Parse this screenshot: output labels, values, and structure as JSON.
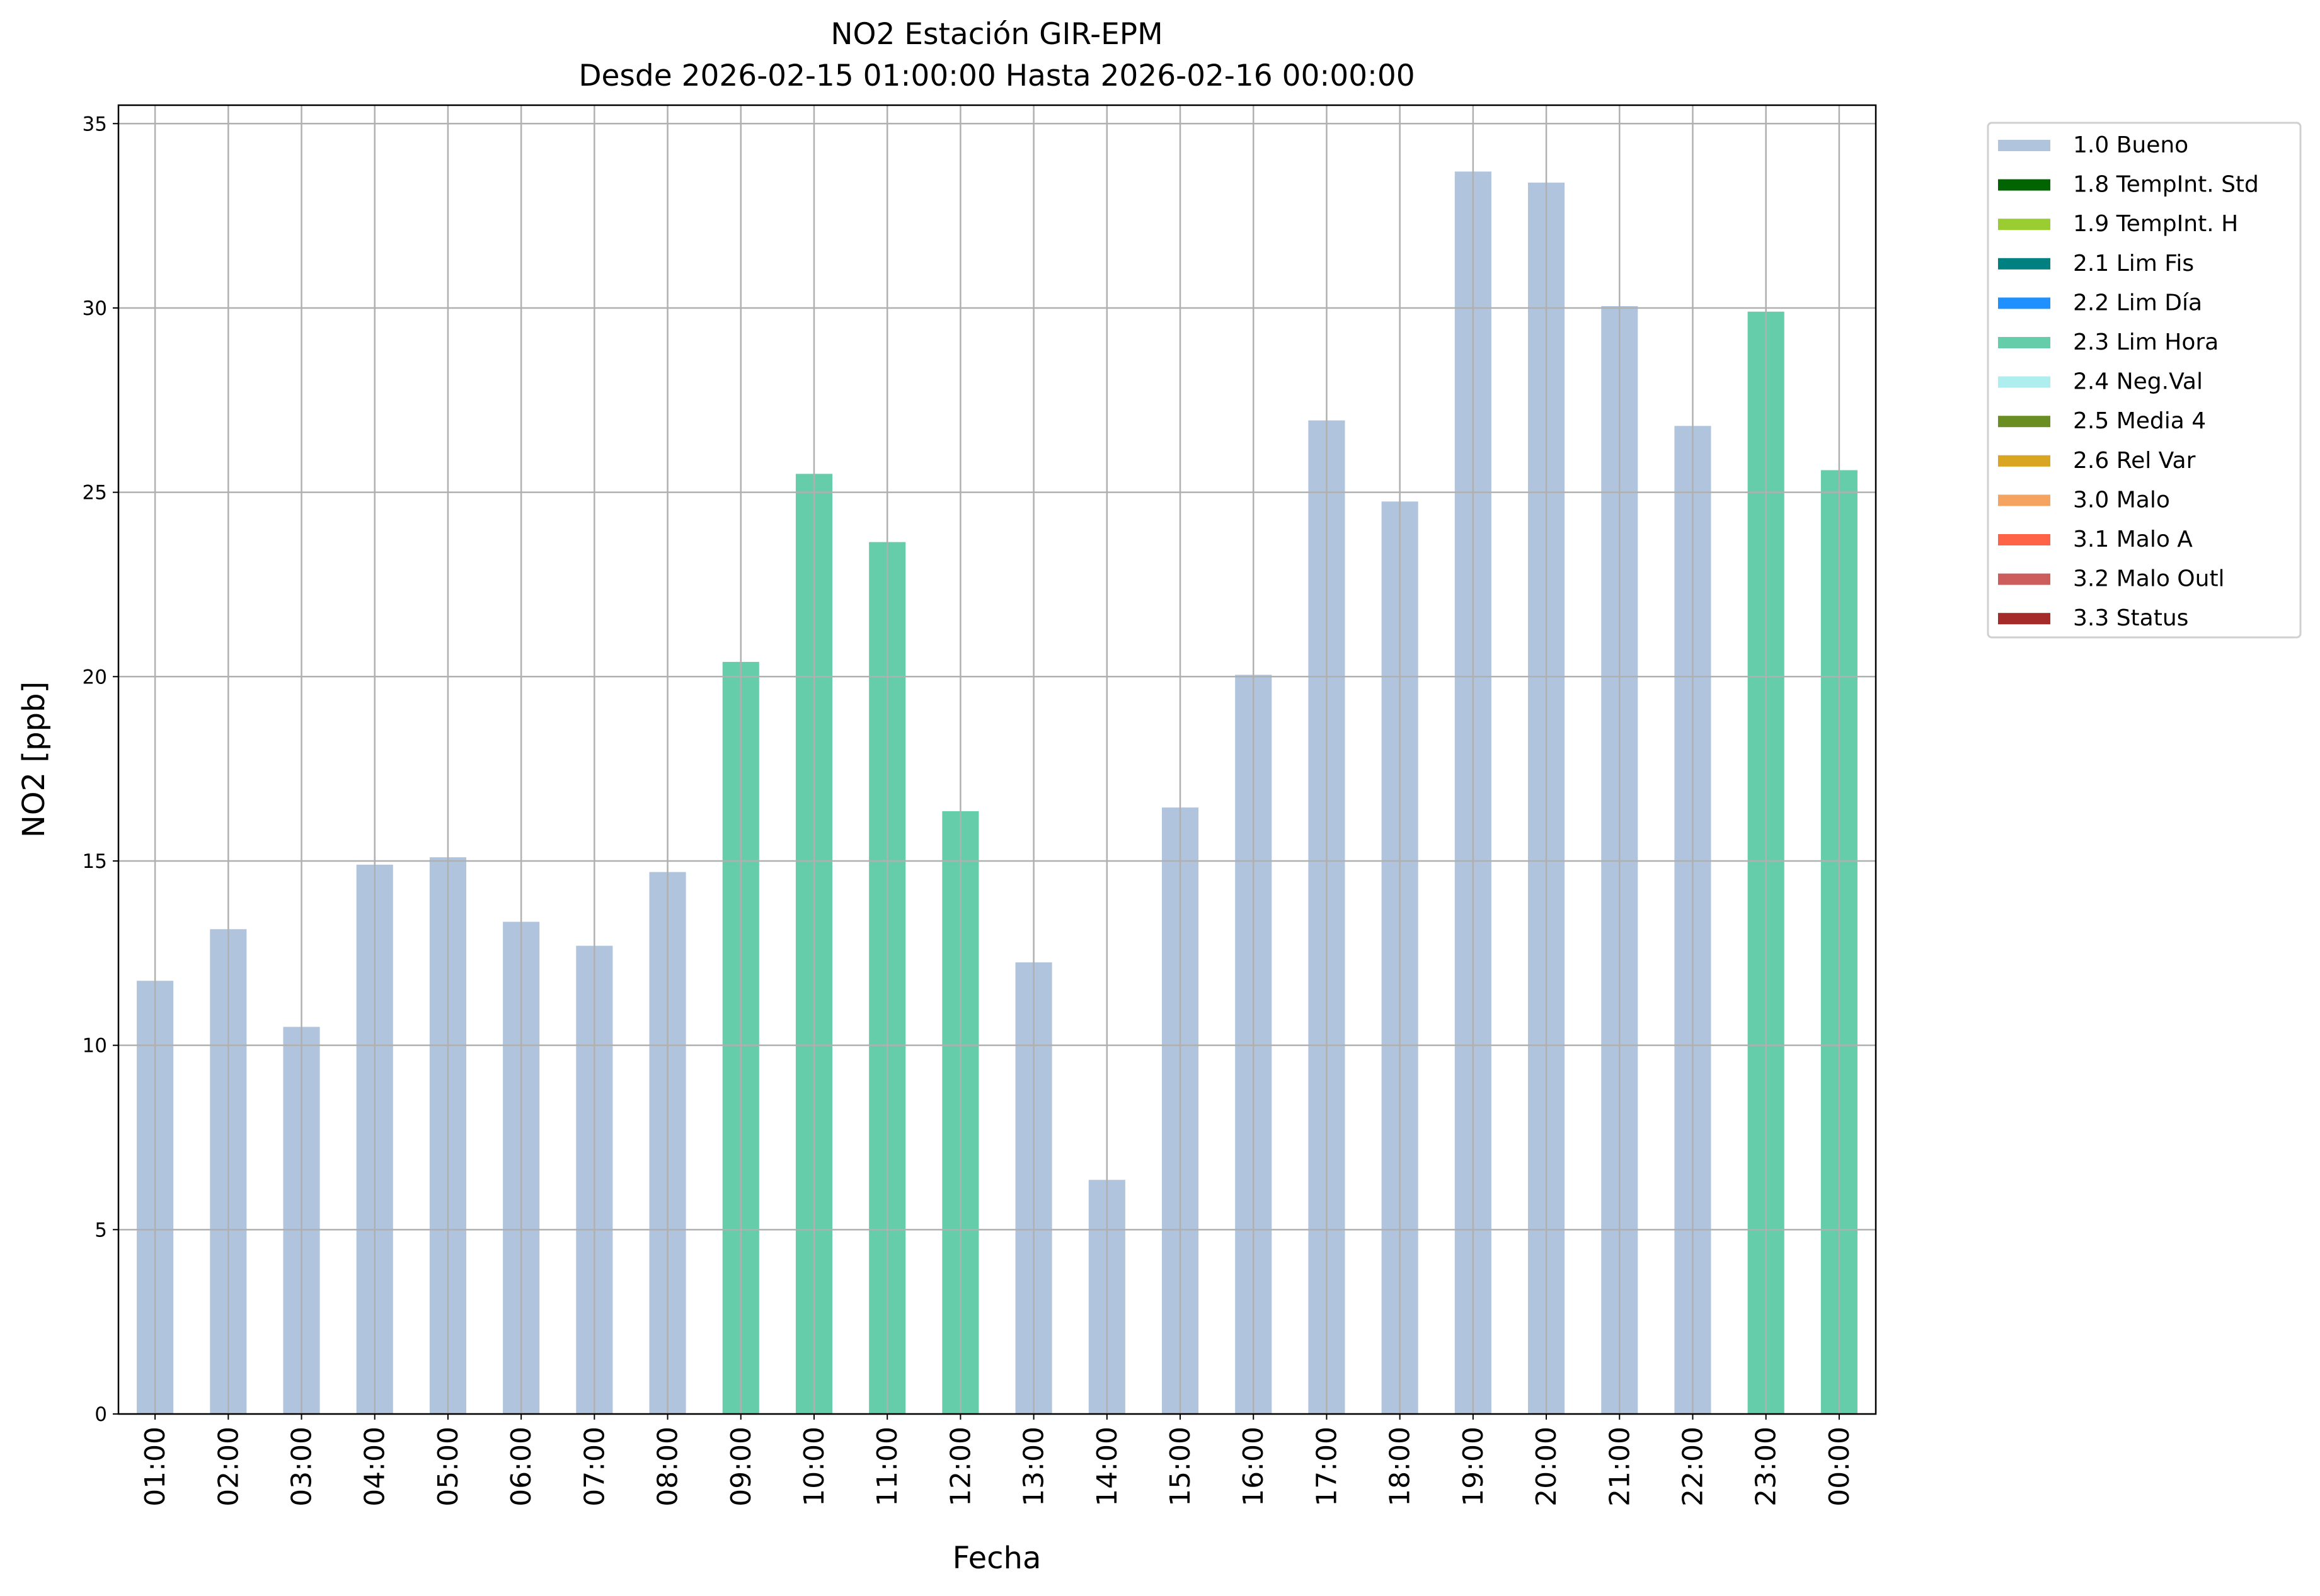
{
  "chart_data": {
    "type": "bar",
    "title": "NO2 Estación GIR-EPM",
    "subtitle": "Desde 2026-02-15 01:00:00 Hasta 2026-02-16 00:00:00",
    "xlabel": "Fecha",
    "ylabel": "NO2 [ppb]",
    "ylim": [
      0,
      35.5
    ],
    "yticks": [
      0,
      5,
      10,
      15,
      20,
      25,
      30,
      35
    ],
    "grid": true,
    "legend_position": "outside-right-top",
    "categories": [
      "01:00",
      "02:00",
      "03:00",
      "04:00",
      "05:00",
      "06:00",
      "07:00",
      "08:00",
      "09:00",
      "10:00",
      "11:00",
      "12:00",
      "13:00",
      "14:00",
      "15:00",
      "16:00",
      "17:00",
      "18:00",
      "19:00",
      "20:00",
      "21:00",
      "22:00",
      "23:00",
      "00:00"
    ],
    "values": [
      11.75,
      13.15,
      10.5,
      14.9,
      15.1,
      13.35,
      12.7,
      14.7,
      20.4,
      25.5,
      23.65,
      16.35,
      12.25,
      6.35,
      16.45,
      20.05,
      26.95,
      24.75,
      33.7,
      33.4,
      30.05,
      26.8,
      29.9,
      25.6
    ],
    "flags": [
      "1.0 Bueno",
      "1.0 Bueno",
      "1.0 Bueno",
      "1.0 Bueno",
      "1.0 Bueno",
      "1.0 Bueno",
      "1.0 Bueno",
      "1.0 Bueno",
      "2.3 Lim Hora",
      "2.3 Lim Hora",
      "2.3 Lim Hora",
      "2.3 Lim Hora",
      "1.0 Bueno",
      "1.0 Bueno",
      "1.0 Bueno",
      "1.0 Bueno",
      "1.0 Bueno",
      "1.0 Bueno",
      "1.0 Bueno",
      "1.0 Bueno",
      "1.0 Bueno",
      "1.0 Bueno",
      "2.3 Lim Hora",
      "2.3 Lim Hora"
    ],
    "legend": [
      {
        "label": "1.0 Bueno",
        "color": "#b0c4de"
      },
      {
        "label": "1.8 TempInt. Std",
        "color": "#006400"
      },
      {
        "label": "1.9 TempInt. H",
        "color": "#9acd32"
      },
      {
        "label": "2.1 Lim Fis",
        "color": "#008080"
      },
      {
        "label": "2.2 Lim Día",
        "color": "#1e90ff"
      },
      {
        "label": "2.3 Lim Hora",
        "color": "#66cdaa"
      },
      {
        "label": "2.4 Neg.Val",
        "color": "#afeeee"
      },
      {
        "label": "2.5 Media 4",
        "color": "#6b8e23"
      },
      {
        "label": "2.6 Rel Var",
        "color": "#daa520"
      },
      {
        "label": "3.0 Malo",
        "color": "#f4a460"
      },
      {
        "label": "3.1 Malo A",
        "color": "#ff6347"
      },
      {
        "label": "3.2 Malo Outl",
        "color": "#cd5c5c"
      },
      {
        "label": "3.3 Status",
        "color": "#a52a2a"
      }
    ]
  }
}
